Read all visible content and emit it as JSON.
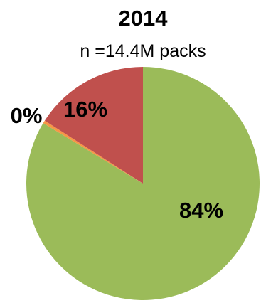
{
  "chart_data": {
    "type": "pie",
    "title": "2014",
    "subtitle": "n =14.4M packs",
    "slices": [
      {
        "label": "84%",
        "value": 84,
        "color": "#9bbb59"
      },
      {
        "label": "0%",
        "value": 0.4,
        "color": "#f79646"
      },
      {
        "label": "16%",
        "value": 16,
        "color": "#c0504d"
      }
    ]
  }
}
